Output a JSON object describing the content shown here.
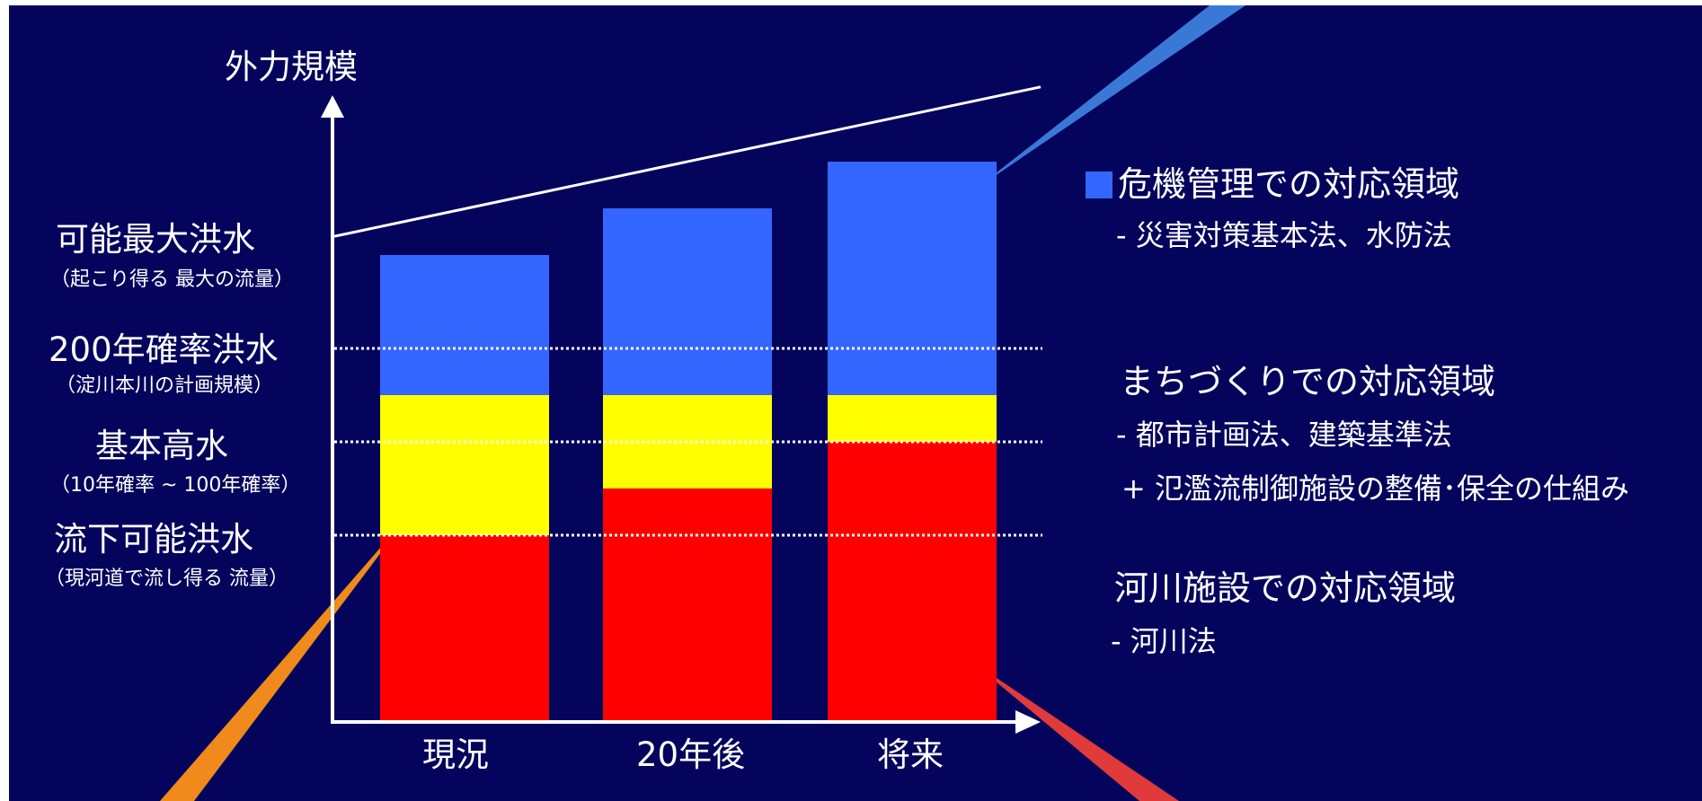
{
  "chart_data": {
    "type": "bar",
    "y_axis_label": "外力規模",
    "categories": [
      "現況",
      "20年後",
      "将来"
    ],
    "levels": [
      {
        "main": "可能最大洪水",
        "sub": "（起こり得る 最大の流量）"
      },
      {
        "main": "200年確率洪水",
        "sub": "（淀川本川の計画規模）"
      },
      {
        "main": "基本高水",
        "sub": "（10年確率 ~ 100年確率）"
      },
      {
        "main": "流下可能洪水",
        "sub": "（現河道で流し得る 流量）"
      }
    ],
    "series": [
      {
        "name": "河川施設での対応領域",
        "color": "#ff0000",
        "values": [
          2.0,
          2.5,
          3.0
        ]
      },
      {
        "name": "まちづくりでの対応領域",
        "color": "#ffff00",
        "values": [
          1.5,
          1.0,
          0.5
        ]
      },
      {
        "name": "危機管理での対応領域",
        "color": "#3366ff",
        "values": [
          1.5,
          2.0,
          2.5
        ]
      }
    ],
    "ylim": [
      0,
      6
    ],
    "max_flood_trend_line": {
      "y_start": 5.2,
      "y_end": 6.8
    }
  },
  "legend": [
    {
      "title": "危機管理での対応領域",
      "color": "#3366ff",
      "show_swatch": true,
      "lines": [
        "- 災害対策基本法、水防法"
      ]
    },
    {
      "title": "まちづくりでの対応領域",
      "color": "#ffff00",
      "show_swatch": false,
      "lines": [
        "- 都市計画法、建築基準法",
        "+ 氾濫流制御施設の整備･保全の仕組み"
      ]
    },
    {
      "title": "河川施設での対応領域",
      "color": "#ff0000",
      "show_swatch": false,
      "lines": [
        "- 河川法"
      ]
    }
  ],
  "colors": {
    "background": "#04045c",
    "axis": "#ffffff",
    "dotted_line": "#ffffff",
    "pointer_blue": "#3a78d8",
    "pointer_orange": "#f08a1c",
    "pointer_red": "#e03a3a"
  }
}
